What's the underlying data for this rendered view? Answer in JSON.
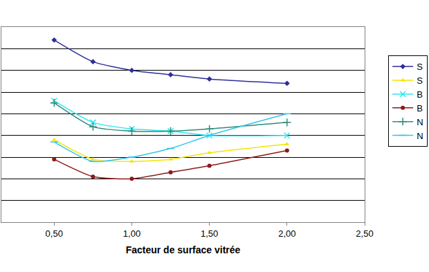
{
  "chart_data": {
    "type": "line",
    "x_label": "Facteur de surface vitrée",
    "x": [
      0.5,
      0.75,
      1.0,
      1.25,
      1.5,
      2.0
    ],
    "xlim": [
      0.16,
      2.5
    ],
    "xticks": [
      {
        "value": 0.5,
        "label": "0,50"
      },
      {
        "value": 1.0,
        "label": "1,00"
      },
      {
        "value": 1.5,
        "label": "1,50"
      },
      {
        "value": 2.0,
        "label": "2,00"
      },
      {
        "value": 2.5,
        "label": "2,50"
      }
    ],
    "ylim": [
      0,
      9
    ],
    "yticks": [
      0,
      1,
      2,
      3,
      4,
      5,
      6,
      7,
      8,
      9
    ],
    "grid": true,
    "tick_labels": "x",
    "legend": "right",
    "series": [
      {
        "name": "S",
        "color": "#2e2e9a",
        "marker": "diamond",
        "line_style": "solid",
        "values": [
          8.4,
          7.4,
          7.0,
          6.8,
          6.6,
          6.4
        ]
      },
      {
        "name": "S",
        "color": "#f2e600",
        "marker": "triangle-up",
        "line_style": "solid",
        "values": [
          3.8,
          2.9,
          2.8,
          2.9,
          3.2,
          3.6
        ]
      },
      {
        "name": "B",
        "color": "#2ee6f0",
        "marker": "x",
        "line_style": "solid",
        "values": [
          5.6,
          4.6,
          4.3,
          4.2,
          4.0,
          4.0
        ]
      },
      {
        "name": "B",
        "color": "#8b1a1a",
        "marker": "circle",
        "line_style": "solid",
        "values": [
          2.9,
          2.1,
          2.0,
          2.3,
          2.6,
          3.3
        ]
      },
      {
        "name": "N",
        "color": "#2e8b7a",
        "marker": "cross",
        "line_style": "solid",
        "values": [
          5.5,
          4.4,
          4.2,
          4.2,
          4.3,
          4.6
        ]
      },
      {
        "name": "N",
        "color": "#33c4f0",
        "marker": "line-ew",
        "line_style": "solid",
        "values": [
          3.7,
          2.8,
          3.0,
          3.4,
          4.0,
          5.0
        ]
      }
    ]
  }
}
